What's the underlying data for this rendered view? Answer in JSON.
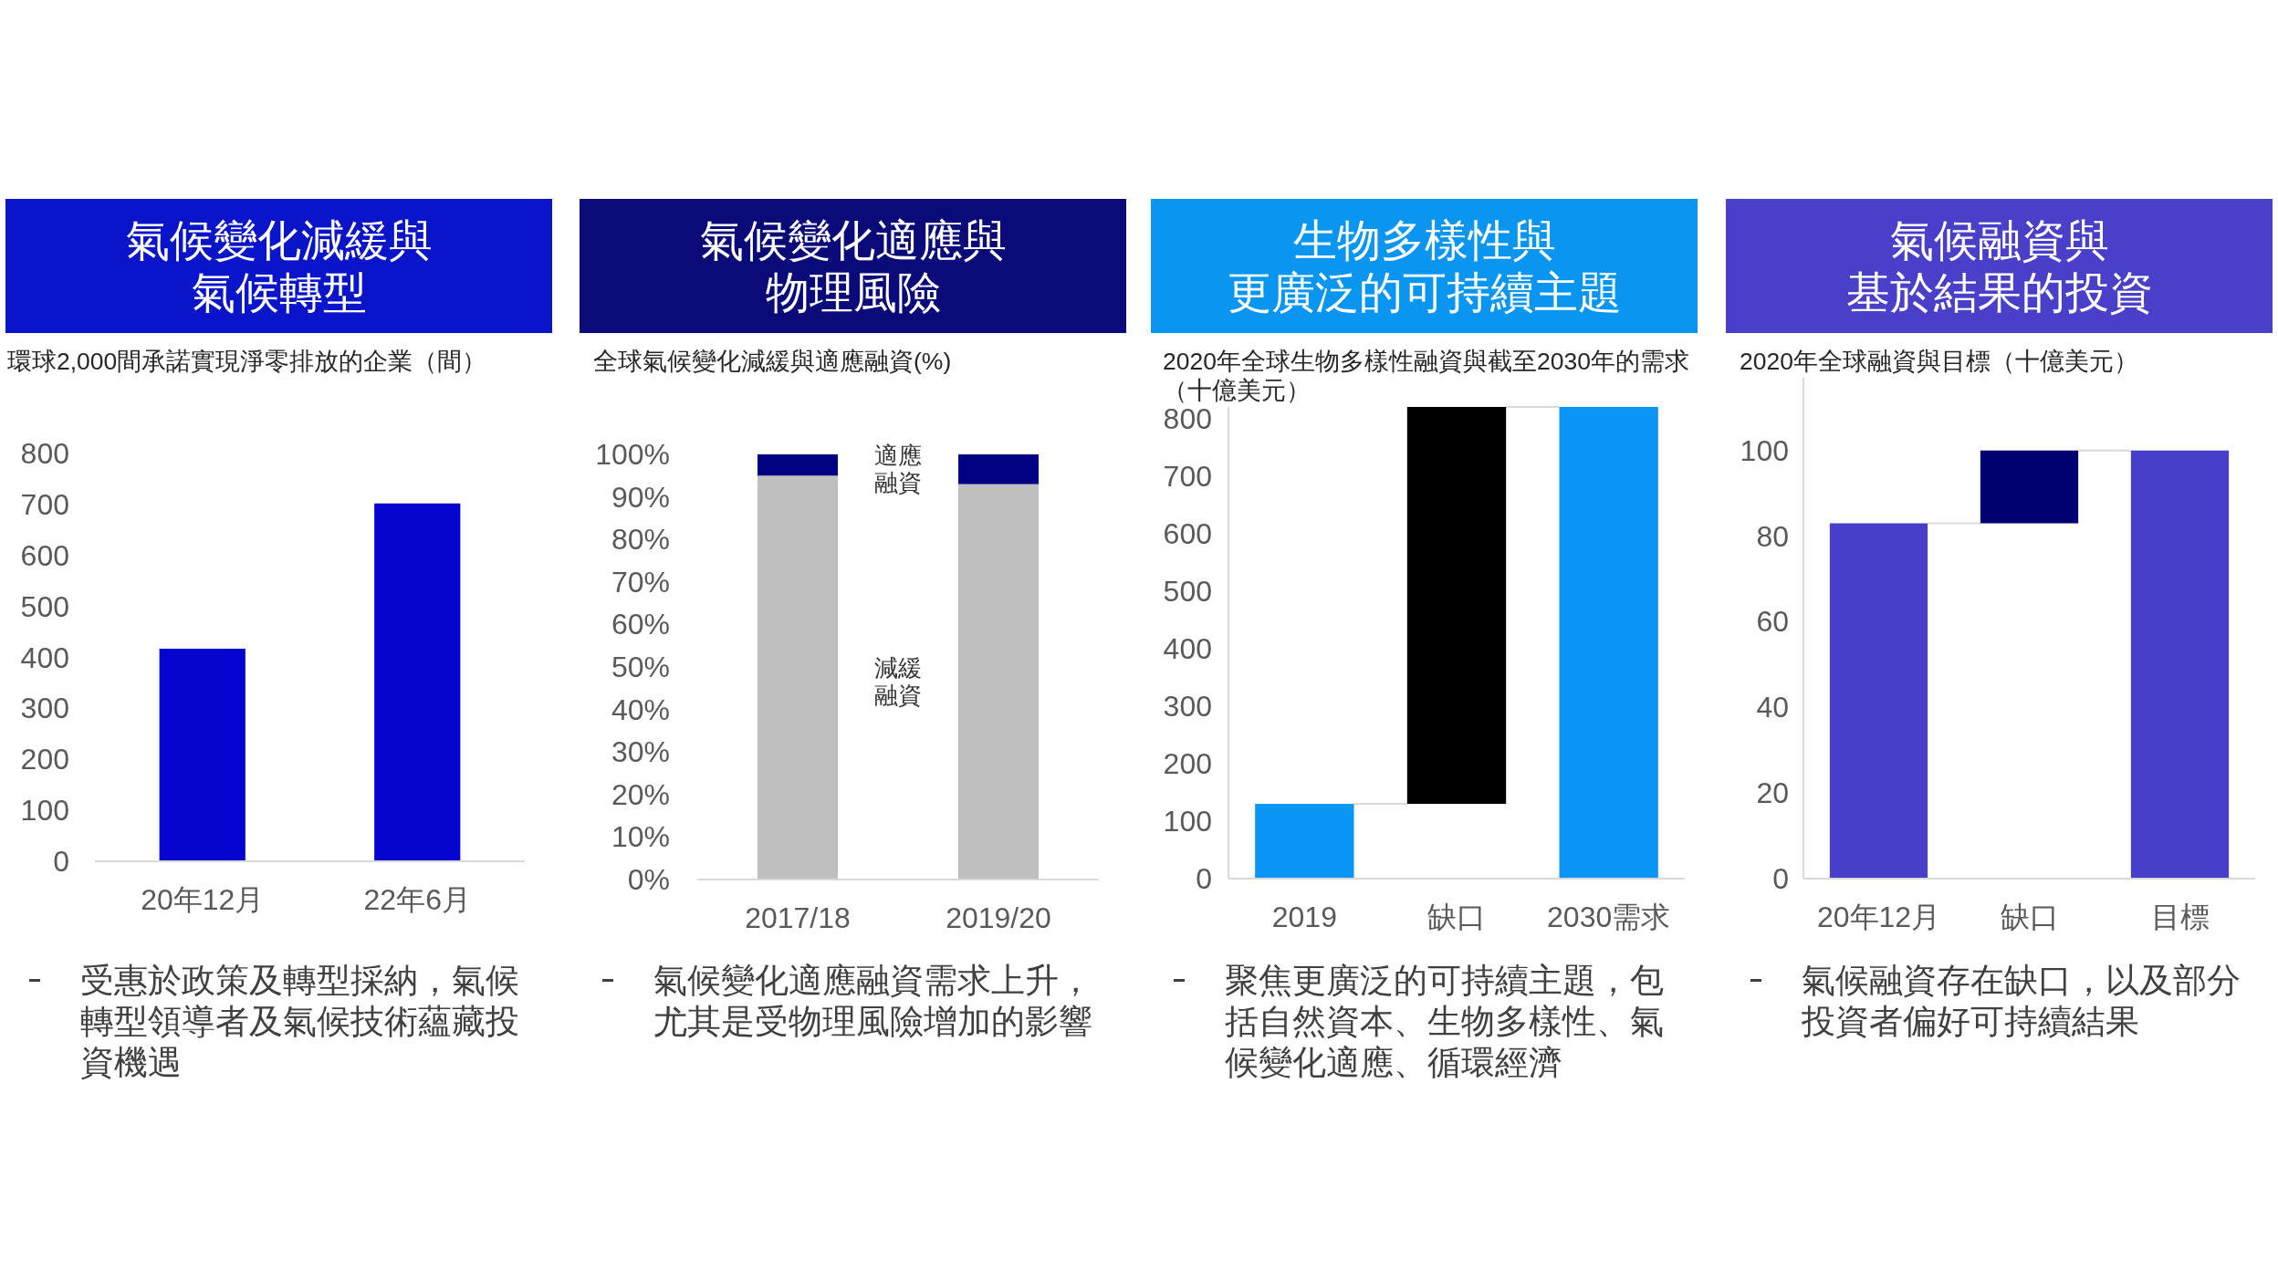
{
  "chart_data": [
    {
      "type": "bar",
      "title": "氣候變化減緩與氣候轉型",
      "subtitle": "環球2,000間承諾實現淨零排放的企業（間）",
      "categories": [
        "20年12月",
        "22年6月"
      ],
      "values": [
        417,
        702
      ],
      "color": "#0505cf",
      "ylim": [
        0,
        800
      ],
      "yticks": [
        0,
        100,
        200,
        300,
        400,
        500,
        600,
        700,
        800
      ],
      "annotations": [
        "受惠於政策及轉型採納，氣候轉型領導者及氣候技術蘊藏投資機遇"
      ]
    },
    {
      "type": "bar",
      "stacked": true,
      "title": "氣候變化適應與物理風險",
      "subtitle": "全球氣候變化減緩與適應融資(%)",
      "categories": [
        "2017/18",
        "2019/20"
      ],
      "series": [
        {
          "name": "減緩融資",
          "color": "#bfbfbf",
          "values": [
            95,
            93
          ]
        },
        {
          "name": "適應融資",
          "color": "#000080",
          "values": [
            5,
            7
          ]
        }
      ],
      "ylim": [
        0,
        100
      ],
      "yticks": [
        {
          "value": 0,
          "label": "0%"
        },
        {
          "value": 10,
          "label": "10%"
        },
        {
          "value": 20,
          "label": "20%"
        },
        {
          "value": 30,
          "label": "30%"
        },
        {
          "value": 40,
          "label": "40%"
        },
        {
          "value": 50,
          "label": "50%"
        },
        {
          "value": 60,
          "label": "60%"
        },
        {
          "value": 70,
          "label": "70%"
        },
        {
          "value": 80,
          "label": "80%"
        },
        {
          "value": 90,
          "label": "90%"
        },
        {
          "value": 100,
          "label": "100%"
        }
      ],
      "annotations": [
        "氣候變化適應融資需求上升，尤其是受物理風險增加的影響"
      ]
    },
    {
      "type": "bar",
      "title": "生物多樣性與更廣泛的可持續主題",
      "subtitle": "2020年全球生物多樣性融資與截至2030年的需求（十億美元）",
      "categories": [
        "2019",
        "缺口",
        "2030需求"
      ],
      "values": [
        130,
        690,
        820
      ],
      "base": [
        0,
        130,
        0
      ],
      "colors": [
        "#0a96f5",
        "#000000",
        "#0a96f5"
      ],
      "ylim": [
        0,
        820
      ],
      "yticks": [
        0,
        100,
        200,
        300,
        400,
        500,
        600,
        700,
        800
      ],
      "annotations": [
        "聚焦更廣泛的可持續主題，包括自然資本、生物多樣性、氣候變化適應、循環經濟"
      ]
    },
    {
      "type": "bar",
      "title": "氣候融資與基於結果的投資",
      "subtitle": "2020年全球融資與目標（十億美元）",
      "categories": [
        "20年12月",
        "缺口",
        "目標"
      ],
      "values": [
        83,
        17,
        100
      ],
      "base": [
        0,
        83,
        0
      ],
      "colors": [
        "#483fc8",
        "#000070",
        "#483fc8"
      ],
      "ylim": [
        0,
        117
      ],
      "yticks": [
        0,
        20,
        40,
        60,
        80,
        100
      ],
      "annotations": [
        "氣候融資存在缺口，以及部分投資者偏好可持續結果"
      ]
    }
  ]
}
